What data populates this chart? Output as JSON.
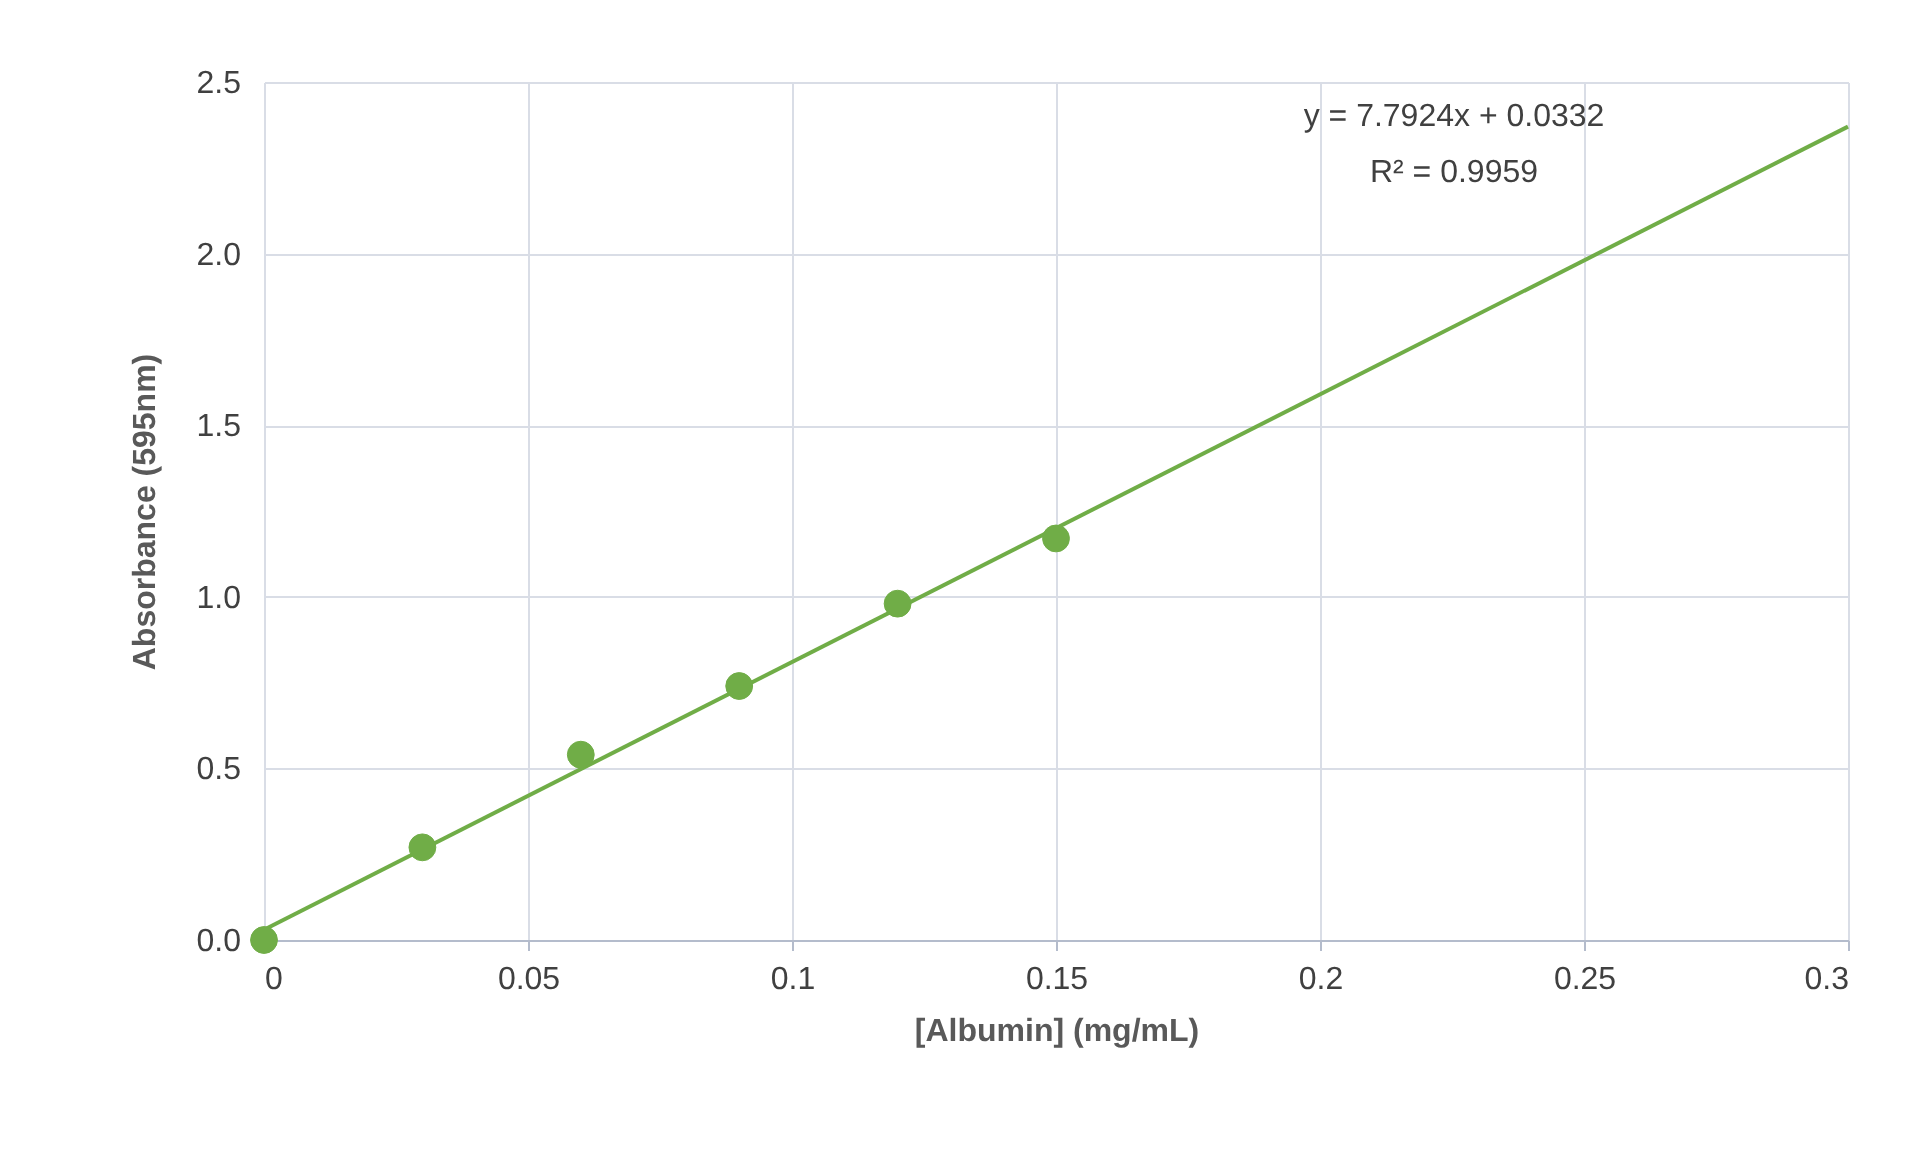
{
  "chart_data": {
    "type": "scatter",
    "xlabel": "[Albumin] (mg/mL)",
    "ylabel": "Absorbance (595nm)",
    "x": [
      0,
      0.03,
      0.06,
      0.09,
      0.12,
      0.15
    ],
    "series": [
      {
        "color": "#70ad47",
        "marker": "circle",
        "values": [
          0,
          0.27,
          0.54,
          0.74,
          0.98,
          1.17
        ]
      },
      {
        "type": "line",
        "color": "#70ad47",
        "marker": "none",
        "x": [
          0,
          0.3
        ],
        "values": [
          0.03,
          2.37
        ]
      }
    ],
    "xlim": [
      0,
      0.3
    ],
    "xticks": [
      0,
      0.05,
      0.1,
      0.15,
      0.2,
      0.25,
      0.3
    ],
    "ylim": [
      0,
      2.5
    ],
    "yticks": [
      {
        "value": 0,
        "label": "0.0"
      },
      {
        "value": 0.5,
        "label": "0.5"
      },
      {
        "value": 1,
        "label": "1.0"
      },
      {
        "value": 1.5,
        "label": "1.5"
      },
      {
        "value": 2,
        "label": "2.0"
      },
      {
        "value": 2.5,
        "label": "2.5"
      }
    ],
    "annotations": [
      "y = 7.7924x + 0.0332",
      "R² = 0.9959"
    ],
    "grid": true
  }
}
